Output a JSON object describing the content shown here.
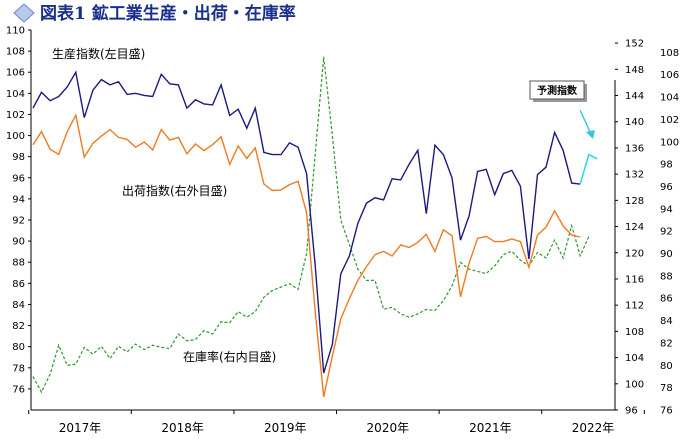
{
  "chart_data": {
    "type": "line",
    "title": "図表1 鉱工業生産・出荷・在庫率",
    "x_labels": [
      "2017年",
      "2018年",
      "2019年",
      "2020年",
      "2021年",
      "2022年"
    ],
    "axes": {
      "left": {
        "range": [
          74,
          110
        ],
        "ticks": [
          76,
          78,
          80,
          82,
          84,
          86,
          88,
          90,
          92,
          94,
          96,
          98,
          100,
          102,
          104,
          106,
          108,
          110
        ]
      },
      "right_outer": {
        "range": [
          96,
          154
        ],
        "ticks": [
          96,
          100,
          104,
          108,
          112,
          116,
          120,
          124,
          128,
          132,
          136,
          140,
          144,
          148,
          152
        ]
      },
      "right_inner": {
        "range": [
          76,
          110
        ],
        "ticks": [
          76,
          78,
          80,
          82,
          84,
          86,
          88,
          90,
          92,
          94,
          96,
          98,
          100,
          102,
          104,
          106,
          108
        ]
      }
    },
    "series": [
      {
        "name": "生産指数(左目盛)",
        "axis": "left",
        "color": "#1a1a80",
        "values": [
          102.6,
          104.1,
          103.3,
          103.7,
          104.6,
          106.0,
          101.7,
          104.3,
          105.3,
          104.8,
          105.1,
          103.9,
          104.0,
          103.8,
          103.7,
          105.8,
          104.9,
          104.8,
          102.6,
          103.4,
          103.0,
          102.9,
          104.8,
          101.9,
          102.5,
          100.7,
          102.6,
          98.4,
          98.2,
          98.2,
          99.3,
          98.9,
          96.4,
          87.7,
          77.5,
          80.2,
          86.9,
          88.6,
          91.7,
          93.6,
          94.1,
          93.9,
          95.9,
          95.8,
          97.3,
          98.6,
          92.6,
          99.1,
          98.2,
          96.0,
          90.1,
          92.4,
          96.6,
          96.8,
          94.4,
          96.4,
          96.7,
          95.2,
          88.3,
          96.3,
          97.0,
          100.3,
          98.6,
          95.5,
          95.4
        ],
        "forecast": [
          95.4,
          98.2,
          97.8
        ]
      },
      {
        "name": "出荷指数(右外目盛)",
        "axis": "right_outer",
        "color": "#f07a20",
        "values": [
          136.5,
          138.5,
          135.8,
          135.0,
          138.5,
          141.0,
          134.6,
          136.7,
          137.8,
          138.8,
          137.6,
          137.3,
          136.1,
          136.9,
          135.7,
          138.8,
          137.2,
          137.6,
          135.1,
          136.6,
          135.6,
          136.5,
          137.7,
          133.5,
          136.3,
          134.4,
          136.0,
          130.5,
          129.5,
          129.6,
          130.4,
          130.9,
          126.1,
          111.0,
          98.0,
          104.2,
          109.9,
          113.0,
          115.8,
          117.9,
          119.7,
          120.2,
          119.5,
          121.2,
          120.8,
          121.6,
          122.8,
          120.2,
          123.5,
          122.6,
          113.3,
          118.4,
          122.2,
          122.5,
          121.7,
          121.7,
          122.1,
          121.7,
          117.8,
          122.7,
          123.9,
          126.4,
          124.1,
          122.7,
          122.4
        ]
      },
      {
        "name": "在庫率(右内目盛)",
        "axis": "right_inner",
        "color": "#2a9a2a",
        "values": [
          79.0,
          77.6,
          79.2,
          81.8,
          80.0,
          80.1,
          81.6,
          81.0,
          81.7,
          80.6,
          81.7,
          81.2,
          81.9,
          81.4,
          81.8,
          81.6,
          81.5,
          82.8,
          82.2,
          82.3,
          83.1,
          82.8,
          83.9,
          83.8,
          84.8,
          84.3,
          84.8,
          86.1,
          86.7,
          87.0,
          87.3,
          86.8,
          90.0,
          98.9,
          107.6,
          100.6,
          93.0,
          90.8,
          88.6,
          87.6,
          87.6,
          85.0,
          85.2,
          84.6,
          84.3,
          84.6,
          85.0,
          84.9,
          85.8,
          87.1,
          89.2,
          88.6,
          88.4,
          88.2,
          88.9,
          89.9,
          90.2,
          89.4,
          88.9,
          90.1,
          89.6,
          91.2,
          89.6,
          92.5,
          89.8,
          91.5
        ]
      }
    ],
    "series_labels": [
      "生産指数(左目盛)",
      "出荷指数(右外目盛)",
      "在庫率(右内目盛)"
    ],
    "annotation": "予測指数",
    "grid": false
  }
}
